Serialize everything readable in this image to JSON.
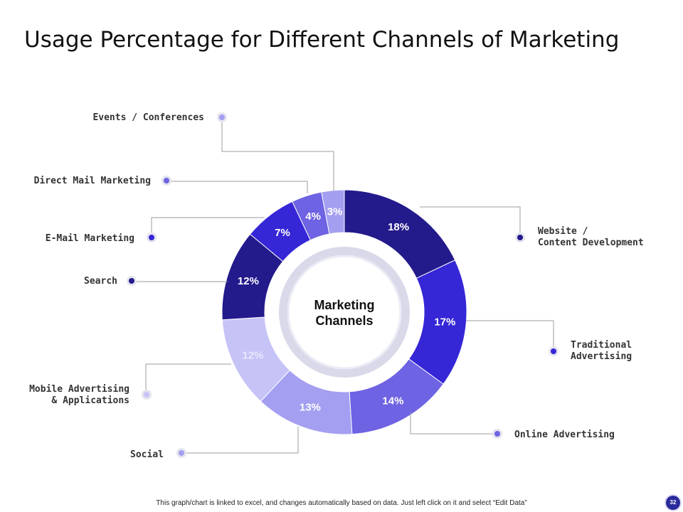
{
  "page": {
    "title": "Usage Percentage for Different Channels of Marketing",
    "footer": "This graph/chart is linked to excel, and changes automatically based on data. Just left click on it and select “Edit Data”",
    "page_number": "32"
  },
  "chart_data": {
    "type": "pie",
    "variant": "donut",
    "center_label": [
      "Marketing",
      "Channels"
    ],
    "slices": [
      {
        "label": "Website /\nContent Development",
        "value": 18,
        "display": "18%",
        "color": "#231a8c"
      },
      {
        "label": "Traditional\nAdvertising",
        "value": 17,
        "display": "17%",
        "color": "#3526d6"
      },
      {
        "label": "Online Advertising",
        "value": 14,
        "display": "14%",
        "color": "#6e63e2"
      },
      {
        "label": "Social",
        "value": 13,
        "display": "13%",
        "color": "#a49ff0"
      },
      {
        "label": "Mobile Advertising\n& Applications",
        "value": 12,
        "display": "12%",
        "color": "#c6c3f7"
      },
      {
        "label": "Search",
        "value": 12,
        "display": "12%",
        "color": "#231a8c"
      },
      {
        "label": "E-Mail Marketing",
        "value": 7,
        "display": "7%",
        "color": "#3526d6"
      },
      {
        "label": "Direct Mail Marketing",
        "value": 4,
        "display": "4%",
        "color": "#6e63e2"
      },
      {
        "label": "Events / Conferences",
        "value": 3,
        "display": "3%",
        "color": "#a49ff0"
      }
    ]
  }
}
